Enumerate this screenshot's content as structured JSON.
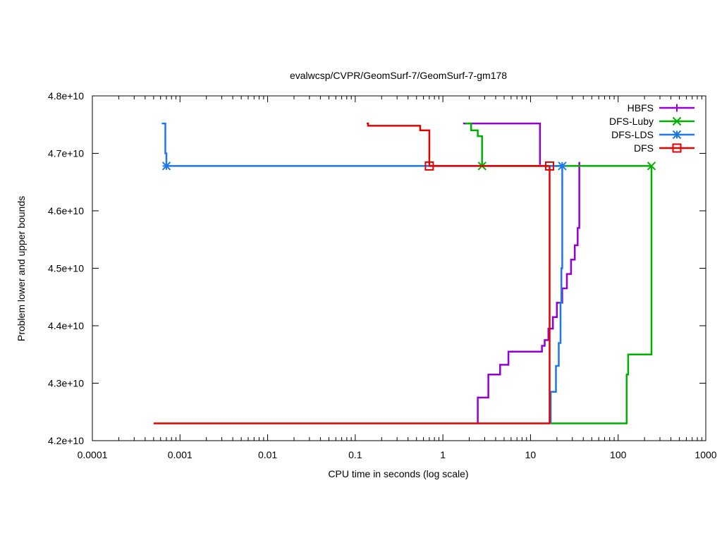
{
  "chart_data": {
    "type": "line",
    "title": "evalwcsp/CVPR/GeomSurf-7/GeomSurf-7-gm178",
    "xlabel": "CPU time in seconds (log scale)",
    "ylabel": "Problem lower and upper bounds",
    "x_scale": "log",
    "xlim": [
      0.0001,
      1000
    ],
    "ylim": [
      42000000000,
      48000000000
    ],
    "x_ticks": [
      {
        "value": 0.0001,
        "label": "0.0001"
      },
      {
        "value": 0.001,
        "label": "0.001"
      },
      {
        "value": 0.01,
        "label": "0.01"
      },
      {
        "value": 0.1,
        "label": "0.1"
      },
      {
        "value": 1,
        "label": "1"
      },
      {
        "value": 10,
        "label": "10"
      },
      {
        "value": 100,
        "label": "100"
      },
      {
        "value": 1000,
        "label": "1000"
      }
    ],
    "y_ticks": [
      {
        "value": 42000000000,
        "label": "4.2e+10"
      },
      {
        "value": 43000000000,
        "label": "4.3e+10"
      },
      {
        "value": 44000000000,
        "label": "4.4e+10"
      },
      {
        "value": 45000000000,
        "label": "4.5e+10"
      },
      {
        "value": 46000000000,
        "label": "4.6e+10"
      },
      {
        "value": 47000000000,
        "label": "4.7e+10"
      },
      {
        "value": 48000000000,
        "label": "4.8e+10"
      }
    ],
    "grid": false,
    "legend_position": "top-right",
    "series": [
      {
        "name": "HBFS",
        "color": "#9400d3",
        "marker": "plus",
        "upper": [
          [
            1.7,
            47520000000
          ],
          [
            12.8,
            47520000000
          ],
          [
            12.8,
            46800000000
          ]
        ],
        "lower": [
          [
            2.5,
            42300000000
          ],
          [
            2.5,
            42750000000
          ],
          [
            3.3,
            42750000000
          ],
          [
            3.3,
            43150000000
          ],
          [
            4.5,
            43150000000
          ],
          [
            4.5,
            43320000000
          ],
          [
            5.6,
            43320000000
          ],
          [
            5.6,
            43550000000
          ],
          [
            13.5,
            43550000000
          ],
          [
            13.5,
            43650000000
          ],
          [
            14.5,
            43650000000
          ],
          [
            14.5,
            43750000000
          ],
          [
            16,
            43750000000
          ],
          [
            16,
            43950000000
          ],
          [
            18,
            43950000000
          ],
          [
            18,
            44150000000
          ],
          [
            20,
            44150000000
          ],
          [
            20,
            44400000000
          ],
          [
            23,
            44400000000
          ],
          [
            23,
            44650000000
          ],
          [
            26,
            44650000000
          ],
          [
            26,
            44900000000
          ],
          [
            29,
            44900000000
          ],
          [
            29,
            45150000000
          ],
          [
            32,
            45150000000
          ],
          [
            32,
            45400000000
          ],
          [
            34.5,
            45400000000
          ],
          [
            34.5,
            45700000000
          ],
          [
            36,
            45700000000
          ],
          [
            36,
            46850000000
          ]
        ],
        "markers": [
          [
            36,
            46780000000
          ]
        ]
      },
      {
        "name": "DFS-Luby",
        "color": "#00b000",
        "marker": "x",
        "upper": [
          [
            1.8,
            47520000000
          ],
          [
            2.1,
            47520000000
          ],
          [
            2.1,
            47400000000
          ],
          [
            2.5,
            47400000000
          ],
          [
            2.5,
            47300000000
          ],
          [
            2.8,
            47300000000
          ],
          [
            2.8,
            46780000000
          ],
          [
            240,
            46780000000
          ]
        ],
        "lower": [
          [
            17,
            42300000000
          ],
          [
            125,
            42300000000
          ],
          [
            125,
            43150000000
          ],
          [
            130,
            43150000000
          ],
          [
            130,
            43500000000
          ],
          [
            240,
            43500000000
          ],
          [
            240,
            46780000000
          ]
        ],
        "markers": [
          [
            2.8,
            46780000000
          ],
          [
            240,
            46780000000
          ]
        ]
      },
      {
        "name": "DFS-LDS",
        "color": "#1e78e6",
        "marker": "star",
        "upper": [
          [
            0.00062,
            47520000000
          ],
          [
            0.00068,
            47520000000
          ],
          [
            0.00068,
            47000000000
          ],
          [
            0.0007,
            47000000000
          ],
          [
            0.0007,
            46780000000
          ],
          [
            23,
            46780000000
          ]
        ],
        "lower": [
          [
            17,
            42300000000
          ],
          [
            17,
            42850000000
          ],
          [
            19.5,
            42850000000
          ],
          [
            19.5,
            43300000000
          ],
          [
            21,
            43300000000
          ],
          [
            21,
            43700000000
          ],
          [
            22,
            43700000000
          ],
          [
            22,
            44400000000
          ],
          [
            22.5,
            44400000000
          ],
          [
            22.5,
            45000000000
          ],
          [
            23,
            45000000000
          ],
          [
            23,
            46780000000
          ]
        ],
        "markers": [
          [
            0.0007,
            46780000000
          ],
          [
            23,
            46780000000
          ]
        ]
      },
      {
        "name": "DFS",
        "color": "#e60000",
        "marker": "square",
        "upper": [
          [
            0.135,
            47520000000
          ],
          [
            0.14,
            47520000000
          ],
          [
            0.14,
            47480000000
          ],
          [
            0.55,
            47480000000
          ],
          [
            0.55,
            47400000000
          ],
          [
            0.7,
            47400000000
          ],
          [
            0.7,
            46780000000
          ],
          [
            16.5,
            46780000000
          ]
        ],
        "lower": [
          [
            0.0005,
            42300000000
          ],
          [
            16.5,
            42300000000
          ],
          [
            16.5,
            46780000000
          ]
        ],
        "markers": [
          [
            0.7,
            46780000000
          ],
          [
            16.5,
            46780000000
          ]
        ]
      }
    ]
  }
}
